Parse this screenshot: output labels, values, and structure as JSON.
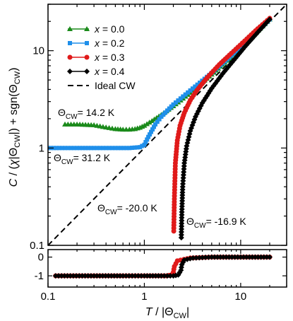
{
  "chart_data": [
    {
      "type": "line",
      "xlabel": "T / |Θ_CW|",
      "ylabel": "C / (χ|Θ_CW|) + sgn(Θ_CW)",
      "xscale": "log",
      "yscale": "log",
      "xlim": [
        0.1,
        30
      ],
      "ylim": [
        0.1,
        30
      ],
      "xticks": [
        0.1,
        1,
        10
      ],
      "xtick_labels": [
        "0.1",
        "1",
        "10"
      ],
      "yticks": [
        0.1,
        1,
        10
      ],
      "ytick_labels": [
        "0.1",
        "1",
        "10"
      ],
      "grid": false,
      "legend_position": "top-left",
      "series": [
        {
          "name": "x = 0.0",
          "color": "#1a8a1a",
          "marker": "triangle",
          "x": [
            0.15,
            0.2,
            0.3,
            0.4,
            0.5,
            0.6,
            0.7,
            0.8,
            0.9,
            1.0,
            1.2,
            1.5,
            2,
            3,
            5,
            8,
            12,
            16,
            20
          ],
          "y": [
            1.75,
            1.75,
            1.72,
            1.63,
            1.57,
            1.55,
            1.55,
            1.57,
            1.62,
            1.7,
            1.9,
            2.2,
            2.7,
            3.7,
            5.7,
            8.7,
            12.8,
            16.9,
            21
          ]
        },
        {
          "name": "x = 0.2",
          "color": "#1f8fea",
          "marker": "square",
          "x": [
            0.1,
            0.15,
            0.2,
            0.3,
            0.5,
            0.7,
            0.9,
            1.0,
            1.1,
            1.3,
            1.5,
            2,
            3,
            5,
            8,
            12,
            16,
            20
          ],
          "y": [
            1.0,
            1.0,
            1.0,
            1.0,
            1.0,
            1.0,
            1.02,
            1.08,
            1.3,
            1.75,
            2.1,
            2.8,
            3.9,
            5.9,
            8.9,
            13,
            17,
            21
          ]
        },
        {
          "name": "x = 0.3",
          "color": "#e01a1a",
          "marker": "circle",
          "x": [
            2.02,
            2.05,
            2.1,
            2.2,
            2.35,
            2.6,
            3,
            3.5,
            4.5,
            6,
            8,
            11,
            15,
            20
          ],
          "y": [
            0.14,
            0.3,
            0.7,
            1.2,
            1.7,
            2.3,
            3.1,
            3.9,
            5.3,
            7.2,
            9.4,
            12.6,
            16.8,
            21.5
          ]
        },
        {
          "name": "x = 0.4",
          "color": "#000000",
          "marker": "diamond",
          "x": [
            2.42,
            2.45,
            2.5,
            2.6,
            2.75,
            3.0,
            3.4,
            4,
            5,
            6.5,
            8.5,
            11,
            15,
            20
          ],
          "y": [
            0.12,
            0.22,
            0.4,
            0.7,
            1.05,
            1.5,
            2.1,
            2.9,
            4.1,
            5.8,
            8,
            10.9,
            15.4,
            21
          ]
        },
        {
          "name": "Ideal CW",
          "color": "#000000",
          "dashed": true,
          "x": [
            0.1,
            30
          ],
          "y": [
            0.1,
            30
          ]
        }
      ],
      "annotations": [
        {
          "text": "Θ_CW= 14.2 K"
        },
        {
          "text": "Θ_CW= 31.2 K"
        },
        {
          "text": "Θ_CW= -20.0 K"
        },
        {
          "text": "Θ_CW= -16.9 K"
        }
      ]
    },
    {
      "type": "line",
      "xscale": "log",
      "xlim": [
        0.1,
        30
      ],
      "ylim": [
        -1.6,
        0.4
      ],
      "yticks": [
        -1,
        0
      ],
      "ytick_labels": [
        "-1",
        "0"
      ],
      "series": [
        {
          "name": "x = 0.3",
          "color": "#e01a1a",
          "marker": "circle",
          "x": [
            0.12,
            0.3,
            0.6,
            1.0,
            1.4,
            1.7,
            1.9,
            2.0,
            2.05,
            2.2,
            3,
            5,
            10,
            20
          ],
          "y": [
            -1.0,
            -1.0,
            -1.0,
            -1.0,
            -1.0,
            -1.0,
            -0.95,
            -0.8,
            -0.5,
            -0.2,
            -0.05,
            0.0,
            0.0,
            0.0
          ]
        },
        {
          "name": "x = 0.4",
          "color": "#000000",
          "marker": "diamond",
          "x": [
            0.12,
            0.3,
            0.6,
            1.0,
            1.5,
            2.0,
            2.25,
            2.4,
            2.45,
            2.6,
            3.2,
            5,
            10,
            20
          ],
          "y": [
            -1.0,
            -1.0,
            -1.0,
            -1.0,
            -1.0,
            -1.0,
            -0.95,
            -0.7,
            -0.4,
            -0.15,
            -0.05,
            0.0,
            0.0,
            0.0
          ]
        }
      ]
    }
  ]
}
